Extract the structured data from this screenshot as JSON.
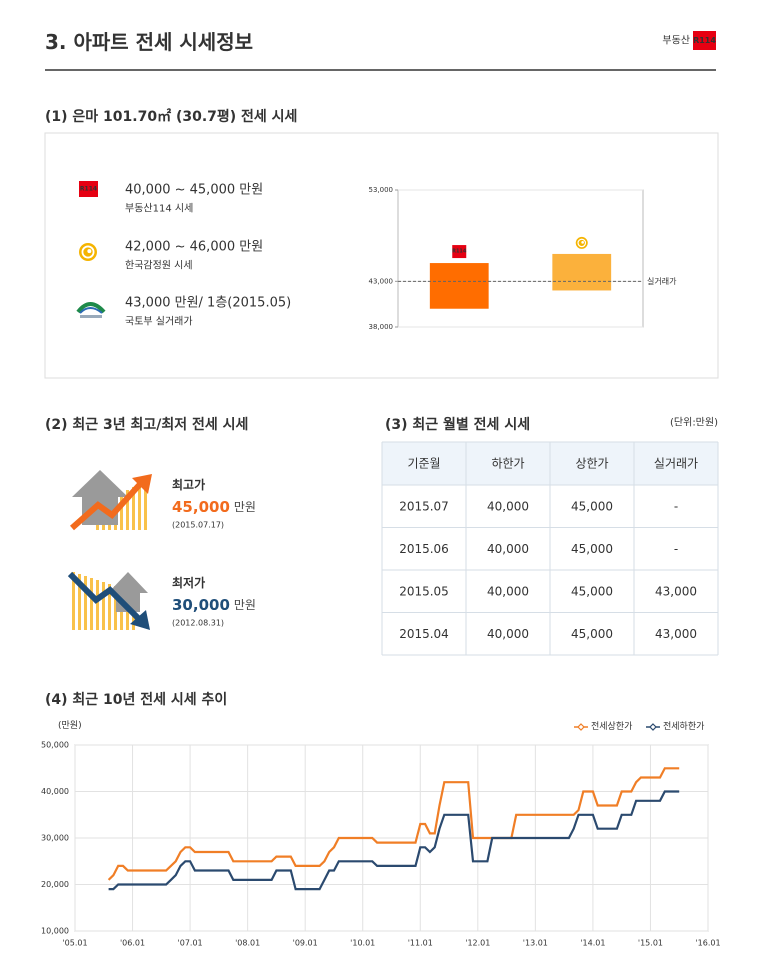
{
  "header": {
    "title": "3. 아파트 전세 시세정보",
    "logo": {
      "text": "부동산",
      "badge": "R114"
    }
  },
  "section1": {
    "title": "(1) 은마 101.70㎡ (30.7평) 전세 시세",
    "items": [
      {
        "price": "40,000 ~ 45,000 만원",
        "source": "부동산114 시세"
      },
      {
        "price": "42,000 ~ 46,000 만원",
        "source": "한국감정원 시세"
      },
      {
        "price": "43,000 만원/ 1층(2015.05)",
        "source": "국토부 실거래가"
      }
    ]
  },
  "section2": {
    "title": "(2) 최근 3년 최고/최저 전세 시세",
    "items": [
      {
        "label": "최고가",
        "price": "45,000",
        "unit": "만원",
        "date": "(2015.07.17)"
      },
      {
        "label": "최저가",
        "price": "30,000",
        "unit": "만원",
        "date": "(2012.08.31)"
      }
    ]
  },
  "section3": {
    "title": "(3) 최근 월별 전세 시세",
    "unit": "(단위:만원)",
    "table": {
      "header": [
        "기준월",
        "하한가",
        "상한가",
        "실거래가"
      ],
      "rows": [
        [
          "2015.07",
          "40,000",
          "45,000",
          "-"
        ],
        [
          "2015.06",
          "40,000",
          "45,000",
          "-"
        ],
        [
          "2015.05",
          "40,000",
          "45,000",
          "43,000"
        ],
        [
          "2015.04",
          "40,000",
          "45,000",
          "43,000"
        ]
      ]
    }
  },
  "section4": {
    "title": "(4) 최근 10년 전세 시세 추이"
  },
  "chart_data": [
    {
      "type": "range-bar",
      "ylim": [
        38000,
        53000
      ],
      "yticks": [
        {
          "value": 38000,
          "label": "38,000"
        },
        {
          "value": 43000,
          "label": "43,000"
        },
        {
          "value": 53000,
          "label": "53,000"
        }
      ],
      "bars": [
        {
          "low": 40000,
          "high": 45000,
          "color": "#ff6d00"
        },
        {
          "low": 42000,
          "high": 46000,
          "color": "#fbb13c"
        }
      ],
      "reference": {
        "value": 43000,
        "label": "실거래가"
      },
      "grid": true
    },
    {
      "type": "line",
      "ylabel": "(만원)",
      "legend": "top-right",
      "grid": true,
      "xlim": [
        "2005-01",
        "2016-01"
      ],
      "xticks": [
        {
          "value": "2005-01",
          "label": "'05.01"
        },
        {
          "value": "2006-01",
          "label": "'06.01"
        },
        {
          "value": "2007-01",
          "label": "'07.01"
        },
        {
          "value": "2008-01",
          "label": "'08.01"
        },
        {
          "value": "2009-01",
          "label": "'09.01"
        },
        {
          "value": "2010-01",
          "label": "'10.01"
        },
        {
          "value": "2011-01",
          "label": "'11.01"
        },
        {
          "value": "2012-01",
          "label": "'12.01"
        },
        {
          "value": "2013-01",
          "label": "'13.01"
        },
        {
          "value": "2014-01",
          "label": "'14.01"
        },
        {
          "value": "2015-01",
          "label": "'15.01"
        },
        {
          "value": "2016-01",
          "label": "'16.01"
        }
      ],
      "ylim": [
        10000,
        50000
      ],
      "yticks": [
        {
          "value": 10000,
          "label": "10,000"
        },
        {
          "value": 20000,
          "label": "20,000"
        },
        {
          "value": 30000,
          "label": "30,000"
        },
        {
          "value": 40000,
          "label": "40,000"
        },
        {
          "value": 50000,
          "label": "50,000"
        }
      ],
      "x": [
        "2005-08",
        "2005-09",
        "2005-10",
        "2005-11",
        "2005-12",
        "2006-01",
        "2006-02",
        "2006-03",
        "2006-04",
        "2006-05",
        "2006-06",
        "2006-07",
        "2006-08",
        "2006-09",
        "2006-10",
        "2006-11",
        "2006-12",
        "2007-01",
        "2007-02",
        "2007-03",
        "2007-04",
        "2007-05",
        "2007-06",
        "2007-07",
        "2007-08",
        "2007-09",
        "2007-10",
        "2007-11",
        "2007-12",
        "2008-01",
        "2008-02",
        "2008-03",
        "2008-04",
        "2008-05",
        "2008-06",
        "2008-07",
        "2008-08",
        "2008-09",
        "2008-10",
        "2008-11",
        "2008-12",
        "2009-01",
        "2009-02",
        "2009-03",
        "2009-04",
        "2009-05",
        "2009-06",
        "2009-07",
        "2009-08",
        "2009-09",
        "2009-10",
        "2009-11",
        "2009-12",
        "2010-01",
        "2010-02",
        "2010-03",
        "2010-04",
        "2010-05",
        "2010-06",
        "2010-07",
        "2010-08",
        "2010-09",
        "2010-10",
        "2010-11",
        "2010-12",
        "2011-01",
        "2011-02",
        "2011-03",
        "2011-04",
        "2011-05",
        "2011-06",
        "2011-07",
        "2011-08",
        "2011-09",
        "2011-10",
        "2011-11",
        "2011-12",
        "2012-01",
        "2012-02",
        "2012-03",
        "2012-04",
        "2012-05",
        "2012-06",
        "2012-07",
        "2012-08",
        "2012-09",
        "2012-10",
        "2012-11",
        "2012-12",
        "2013-01",
        "2013-02",
        "2013-03",
        "2013-04",
        "2013-05",
        "2013-06",
        "2013-07",
        "2013-08",
        "2013-09",
        "2013-10",
        "2013-11",
        "2013-12",
        "2014-01",
        "2014-02",
        "2014-03",
        "2014-04",
        "2014-05",
        "2014-06",
        "2014-07",
        "2014-08",
        "2014-09",
        "2014-10",
        "2014-11",
        "2014-12",
        "2015-01",
        "2015-02",
        "2015-03",
        "2015-04",
        "2015-05",
        "2015-06",
        "2015-07"
      ],
      "series": [
        {
          "name": "전세상한가",
          "color": "#f07e26",
          "values": [
            21000,
            22000,
            24000,
            24000,
            23000,
            23000,
            23000,
            23000,
            23000,
            23000,
            23000,
            23000,
            23000,
            24000,
            25000,
            27000,
            28000,
            28000,
            27000,
            27000,
            27000,
            27000,
            27000,
            27000,
            27000,
            27000,
            25000,
            25000,
            25000,
            25000,
            25000,
            25000,
            25000,
            25000,
            25000,
            26000,
            26000,
            26000,
            26000,
            24000,
            24000,
            24000,
            24000,
            24000,
            24000,
            25000,
            27000,
            28000,
            30000,
            30000,
            30000,
            30000,
            30000,
            30000,
            30000,
            30000,
            29000,
            29000,
            29000,
            29000,
            29000,
            29000,
            29000,
            29000,
            29000,
            33000,
            33000,
            31000,
            31000,
            37000,
            42000,
            42000,
            42000,
            42000,
            42000,
            42000,
            30000,
            30000,
            30000,
            30000,
            30000,
            30000,
            30000,
            30000,
            30000,
            35000,
            35000,
            35000,
            35000,
            35000,
            35000,
            35000,
            35000,
            35000,
            35000,
            35000,
            35000,
            35000,
            36000,
            40000,
            40000,
            40000,
            37000,
            37000,
            37000,
            37000,
            37000,
            40000,
            40000,
            40000,
            42000,
            43000,
            43000,
            43000,
            43000,
            43000,
            45000,
            45000,
            45000,
            45000
          ]
        },
        {
          "name": "전세하한가",
          "color": "#2b4a6f",
          "values": [
            19000,
            19000,
            20000,
            20000,
            20000,
            20000,
            20000,
            20000,
            20000,
            20000,
            20000,
            20000,
            20000,
            21000,
            22000,
            24000,
            25000,
            25000,
            23000,
            23000,
            23000,
            23000,
            23000,
            23000,
            23000,
            23000,
            21000,
            21000,
            21000,
            21000,
            21000,
            21000,
            21000,
            21000,
            21000,
            23000,
            23000,
            23000,
            23000,
            19000,
            19000,
            19000,
            19000,
            19000,
            19000,
            21000,
            23000,
            23000,
            25000,
            25000,
            25000,
            25000,
            25000,
            25000,
            25000,
            25000,
            24000,
            24000,
            24000,
            24000,
            24000,
            24000,
            24000,
            24000,
            24000,
            28000,
            28000,
            27000,
            28000,
            32000,
            35000,
            35000,
            35000,
            35000,
            35000,
            35000,
            25000,
            25000,
            25000,
            25000,
            30000,
            30000,
            30000,
            30000,
            30000,
            30000,
            30000,
            30000,
            30000,
            30000,
            30000,
            30000,
            30000,
            30000,
            30000,
            30000,
            30000,
            32000,
            35000,
            35000,
            35000,
            35000,
            32000,
            32000,
            32000,
            32000,
            32000,
            35000,
            35000,
            35000,
            38000,
            38000,
            38000,
            38000,
            38000,
            38000,
            40000,
            40000,
            40000,
            40000
          ]
        }
      ]
    }
  ]
}
